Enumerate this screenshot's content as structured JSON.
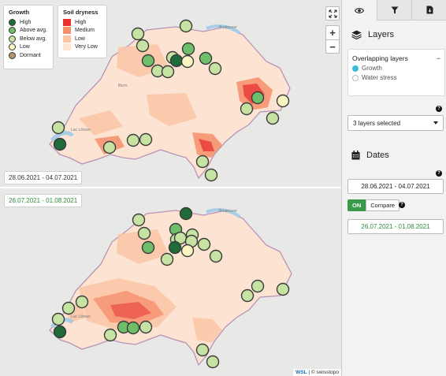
{
  "map": {
    "date_top": "28.06.2021 - 04.07.2021",
    "date_bottom": "26.07.2021 - 01.08.2021",
    "expand_icon": "expand-icon",
    "zoom_in": "+",
    "zoom_out": "−",
    "attribution_wsl": "WSL",
    "attribution_sep": " | ",
    "attribution_swisstopo": "© swisstopo",
    "growth_legend": {
      "title": "Growth",
      "items": [
        {
          "label": "High",
          "color": "#1f6b3a"
        },
        {
          "label": "Above avg.",
          "color": "#6fbf6a"
        },
        {
          "label": "Below avg.",
          "color": "#c7e3a3"
        },
        {
          "label": "Low",
          "color": "#fbf6bf"
        },
        {
          "label": "Dormant",
          "color": "#b4956a"
        }
      ]
    },
    "soil_legend": {
      "title": "Soil dryness",
      "items": [
        {
          "label": "High",
          "color": "#e8312a"
        },
        {
          "label": "Medium",
          "color": "#f6906b"
        },
        {
          "label": "Low",
          "color": "#fbc6a6"
        },
        {
          "label": "Very Low",
          "color": "#fde6d4"
        }
      ]
    },
    "place_labels": {
      "top": [
        "Bodensee",
        "Bern",
        "Lac Léman"
      ],
      "bottom": [
        "Bodensee",
        "Lac Léman"
      ]
    },
    "top_markers": [
      {
        "level": "Below avg."
      },
      {
        "level": "Below avg."
      },
      {
        "level": "Below avg."
      },
      {
        "level": "Above avg."
      },
      {
        "level": "Below avg."
      },
      {
        "level": "Below avg."
      },
      {
        "level": "Below avg."
      },
      {
        "level": "Above avg."
      },
      {
        "level": "High"
      },
      {
        "level": "Low"
      },
      {
        "level": "Above avg."
      },
      {
        "level": "Below avg."
      },
      {
        "level": "Below avg."
      },
      {
        "level": "Above avg."
      },
      {
        "level": "Low"
      },
      {
        "level": "Below avg."
      },
      {
        "level": "Below avg."
      },
      {
        "level": "High"
      },
      {
        "level": "Below avg."
      },
      {
        "level": "Below avg."
      },
      {
        "level": "Below avg."
      },
      {
        "level": "Below avg."
      },
      {
        "level": "Below avg."
      }
    ],
    "bottom_markers": [
      {
        "level": "High"
      },
      {
        "level": "Below avg."
      },
      {
        "level": "Below avg."
      },
      {
        "level": "Above avg."
      },
      {
        "level": "Below avg."
      },
      {
        "level": "Below avg."
      },
      {
        "level": "Below avg."
      },
      {
        "level": "Below avg."
      },
      {
        "level": "Above avg."
      },
      {
        "level": "High"
      },
      {
        "level": "Low"
      },
      {
        "level": "Below avg."
      },
      {
        "level": "Below avg."
      },
      {
        "level": "Below avg."
      },
      {
        "level": "Below avg."
      },
      {
        "level": "Below avg."
      },
      {
        "level": "Below avg."
      },
      {
        "level": "Below avg."
      },
      {
        "level": "Below avg."
      },
      {
        "level": "Below avg."
      },
      {
        "level": "Above avg."
      },
      {
        "level": "Above avg."
      },
      {
        "level": "Below avg."
      },
      {
        "level": "Below avg."
      },
      {
        "level": "High"
      },
      {
        "level": "Below avg."
      },
      {
        "level": "Below avg."
      }
    ]
  },
  "side": {
    "tabs": [
      {
        "icon": "eye-icon",
        "active": true
      },
      {
        "icon": "filter-icon",
        "active": false
      },
      {
        "icon": "document-icon",
        "active": false
      }
    ],
    "layers_title": "Layers",
    "overlap_title": "Overlapping layers",
    "overlap_collapse": "−",
    "overlap_options": [
      {
        "label": "Growth",
        "selected": true
      },
      {
        "label": "Water stress",
        "selected": false
      }
    ],
    "help_glyph": "?",
    "layers_select": "3 layers selected",
    "dates_title": "Dates",
    "date_1": "28.06.2021 - 04.07.2021",
    "toggle_on": "ON",
    "toggle_compare": "Compare",
    "date_2": "26.07.2021 - 01.08.2021",
    "accent": "#3a9a4a"
  }
}
